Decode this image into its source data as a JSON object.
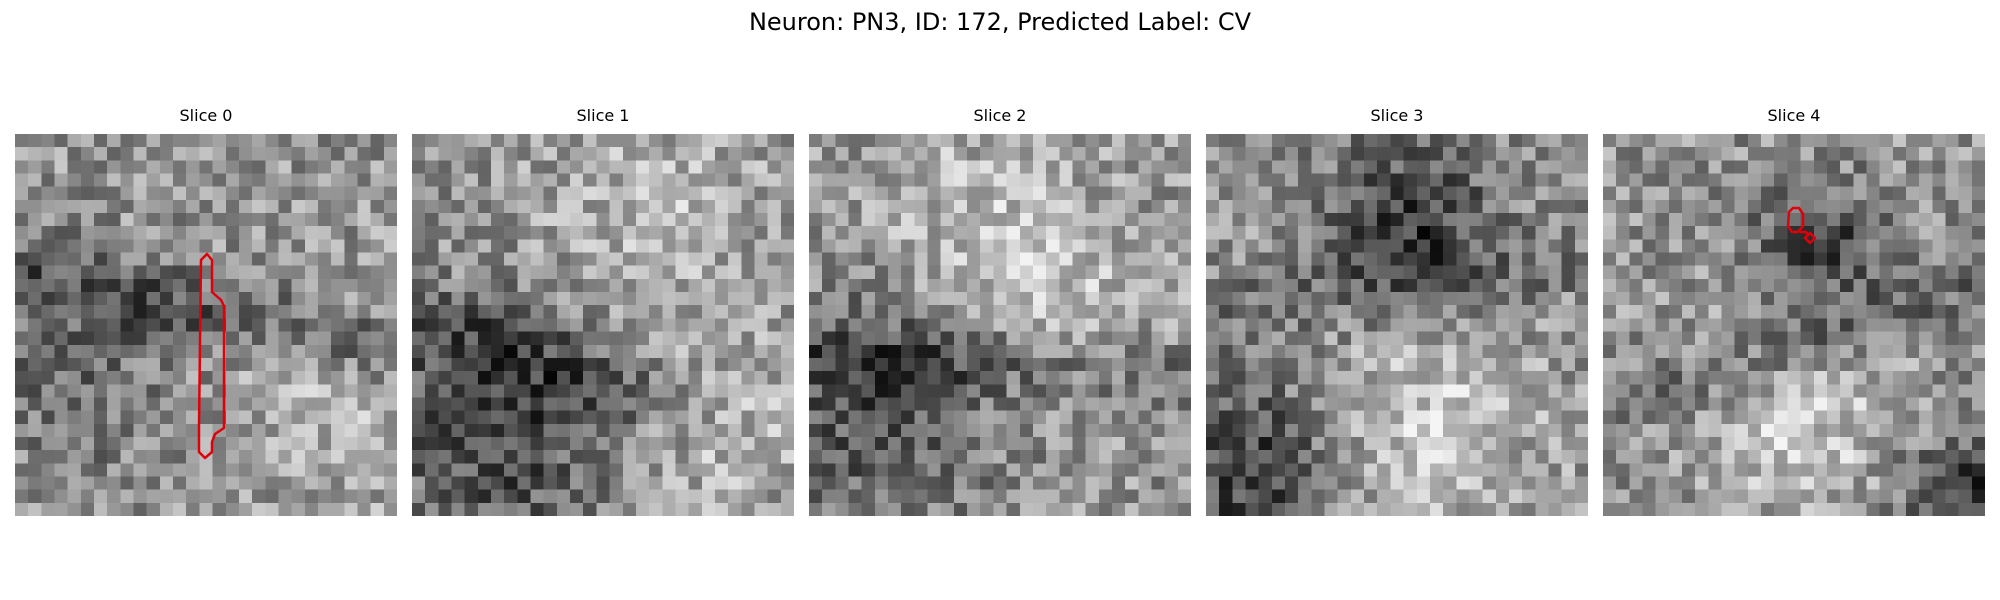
{
  "figure": {
    "title": "Neuron: PN3, ID: 172, Predicted Label: CV"
  },
  "colors": {
    "contour": "#e0000a",
    "background": "#ffffff"
  },
  "panels": [
    {
      "title": "Slice 0",
      "has_contour": true
    },
    {
      "title": "Slice 1",
      "has_contour": false
    },
    {
      "title": "Slice 2",
      "has_contour": false
    },
    {
      "title": "Slice 3",
      "has_contour": false
    },
    {
      "title": "Slice 4",
      "has_contour": true
    }
  ]
}
